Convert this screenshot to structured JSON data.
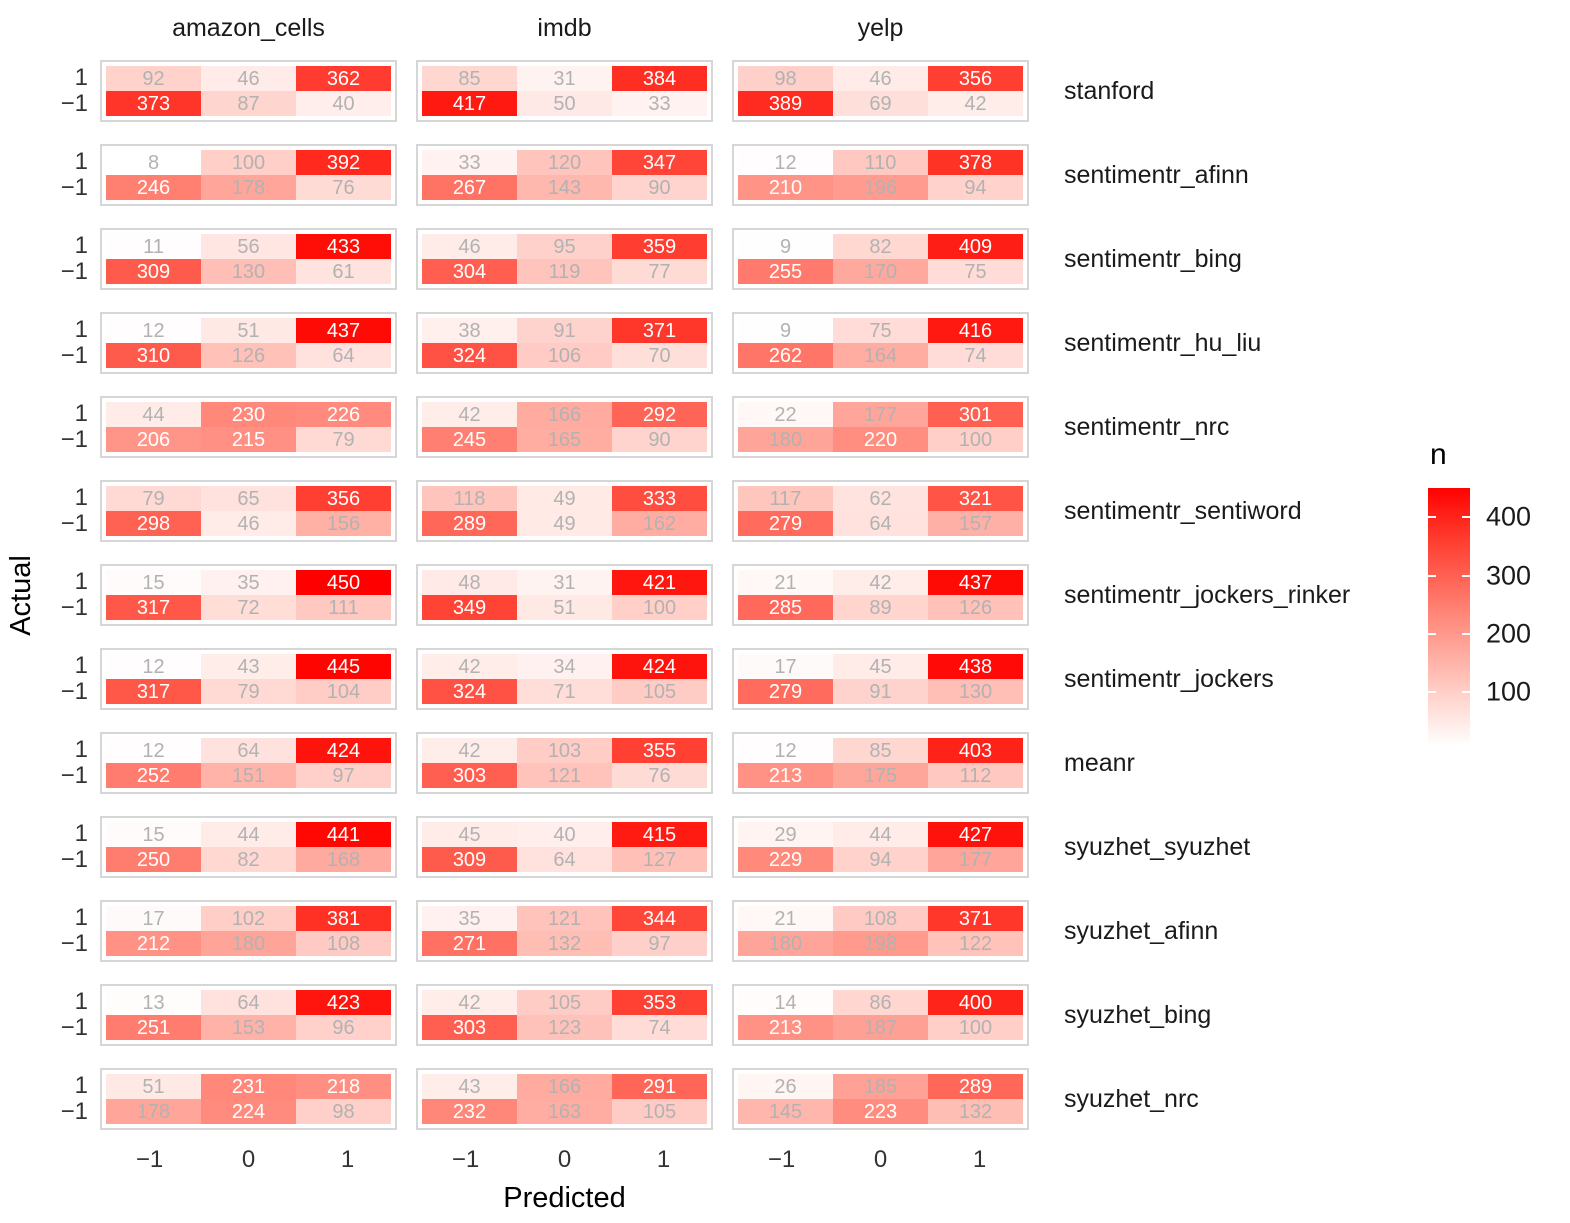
{
  "chart_data": {
    "type": "heatmap",
    "description": "Faceted confusion matrices (Actual vs Predicted sentiment) per method and dataset, tile fill mapped to count n",
    "xlabel": "Predicted",
    "ylabel": "Actual",
    "facet_cols": [
      "amazon_cells",
      "imdb",
      "yelp"
    ],
    "x_ticks": [
      "−1",
      "0",
      "1"
    ],
    "y_ticks": [
      "1",
      "−1"
    ],
    "legend": {
      "title": "n",
      "ticks": [
        400,
        300,
        200,
        100
      ],
      "domain": [
        8,
        450
      ],
      "low_color": "#FFFFFF",
      "high_color": "#FF0000"
    },
    "grid": false,
    "cell_text_gray": "#b2b2b2",
    "cell_text_white": "#ffffff",
    "rows": [
      {
        "method": "stanford",
        "values": {
          "amazon_cells": [
            [
              92,
              46,
              362
            ],
            [
              373,
              87,
              40
            ]
          ],
          "imdb": [
            [
              85,
              31,
              384
            ],
            [
              417,
              50,
              33
            ]
          ],
          "yelp": [
            [
              98,
              46,
              356
            ],
            [
              389,
              69,
              42
            ]
          ]
        }
      },
      {
        "method": "sentimentr_afinn",
        "values": {
          "amazon_cells": [
            [
              8,
              100,
              392
            ],
            [
              246,
              178,
              76
            ]
          ],
          "imdb": [
            [
              33,
              120,
              347
            ],
            [
              267,
              143,
              90
            ]
          ],
          "yelp": [
            [
              12,
              110,
              378
            ],
            [
              210,
              196,
              94
            ]
          ]
        }
      },
      {
        "method": "sentimentr_bing",
        "values": {
          "amazon_cells": [
            [
              11,
              56,
              433
            ],
            [
              309,
              130,
              61
            ]
          ],
          "imdb": [
            [
              46,
              95,
              359
            ],
            [
              304,
              119,
              77
            ]
          ],
          "yelp": [
            [
              9,
              82,
              409
            ],
            [
              255,
              170,
              75
            ]
          ]
        }
      },
      {
        "method": "sentimentr_hu_liu",
        "values": {
          "amazon_cells": [
            [
              12,
              51,
              437
            ],
            [
              310,
              126,
              64
            ]
          ],
          "imdb": [
            [
              38,
              91,
              371
            ],
            [
              324,
              106,
              70
            ]
          ],
          "yelp": [
            [
              9,
              75,
              416
            ],
            [
              262,
              164,
              74
            ]
          ]
        }
      },
      {
        "method": "sentimentr_nrc",
        "values": {
          "amazon_cells": [
            [
              44,
              230,
              226
            ],
            [
              206,
              215,
              79
            ]
          ],
          "imdb": [
            [
              42,
              166,
              292
            ],
            [
              245,
              165,
              90
            ]
          ],
          "yelp": [
            [
              22,
              177,
              301
            ],
            [
              180,
              220,
              100
            ]
          ]
        }
      },
      {
        "method": "sentimentr_sentiword",
        "values": {
          "amazon_cells": [
            [
              79,
              65,
              356
            ],
            [
              298,
              46,
              156
            ]
          ],
          "imdb": [
            [
              118,
              49,
              333
            ],
            [
              289,
              49,
              162
            ]
          ],
          "yelp": [
            [
              117,
              62,
              321
            ],
            [
              279,
              64,
              157
            ]
          ]
        }
      },
      {
        "method": "sentimentr_jockers_rinker",
        "values": {
          "amazon_cells": [
            [
              15,
              35,
              450
            ],
            [
              317,
              72,
              111
            ]
          ],
          "imdb": [
            [
              48,
              31,
              421
            ],
            [
              349,
              51,
              100
            ]
          ],
          "yelp": [
            [
              21,
              42,
              437
            ],
            [
              285,
              89,
              126
            ]
          ]
        }
      },
      {
        "method": "sentimentr_jockers",
        "values": {
          "amazon_cells": [
            [
              12,
              43,
              445
            ],
            [
              317,
              79,
              104
            ]
          ],
          "imdb": [
            [
              42,
              34,
              424
            ],
            [
              324,
              71,
              105
            ]
          ],
          "yelp": [
            [
              17,
              45,
              438
            ],
            [
              279,
              91,
              130
            ]
          ]
        }
      },
      {
        "method": "meanr",
        "values": {
          "amazon_cells": [
            [
              12,
              64,
              424
            ],
            [
              252,
              151,
              97
            ]
          ],
          "imdb": [
            [
              42,
              103,
              355
            ],
            [
              303,
              121,
              76
            ]
          ],
          "yelp": [
            [
              12,
              85,
              403
            ],
            [
              213,
              175,
              112
            ]
          ]
        }
      },
      {
        "method": "syuzhet_syuzhet",
        "values": {
          "amazon_cells": [
            [
              15,
              44,
              441
            ],
            [
              250,
              82,
              168
            ]
          ],
          "imdb": [
            [
              45,
              40,
              415
            ],
            [
              309,
              64,
              127
            ]
          ],
          "yelp": [
            [
              29,
              44,
              427
            ],
            [
              229,
              94,
              177
            ]
          ]
        }
      },
      {
        "method": "syuzhet_afinn",
        "values": {
          "amazon_cells": [
            [
              17,
              102,
              381
            ],
            [
              212,
              180,
              108
            ]
          ],
          "imdb": [
            [
              35,
              121,
              344
            ],
            [
              271,
              132,
              97
            ]
          ],
          "yelp": [
            [
              21,
              108,
              371
            ],
            [
              180,
              198,
              122
            ]
          ]
        }
      },
      {
        "method": "syuzhet_bing",
        "values": {
          "amazon_cells": [
            [
              13,
              64,
              423
            ],
            [
              251,
              153,
              96
            ]
          ],
          "imdb": [
            [
              42,
              105,
              353
            ],
            [
              303,
              123,
              74
            ]
          ],
          "yelp": [
            [
              14,
              86,
              400
            ],
            [
              213,
              187,
              100
            ]
          ]
        }
      },
      {
        "method": "syuzhet_nrc",
        "values": {
          "amazon_cells": [
            [
              51,
              231,
              218
            ],
            [
              178,
              224,
              98
            ]
          ],
          "imdb": [
            [
              43,
              166,
              291
            ],
            [
              232,
              163,
              105
            ]
          ],
          "yelp": [
            [
              26,
              185,
              289
            ],
            [
              145,
              223,
              132
            ]
          ]
        }
      }
    ]
  }
}
